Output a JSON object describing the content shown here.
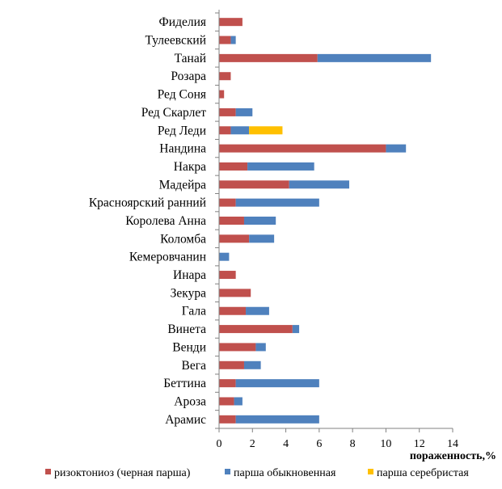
{
  "chart_data": {
    "type": "bar",
    "orientation": "horizontal",
    "stacked": true,
    "categories": [
      "Фиделия",
      "Тулеевский",
      "Танай",
      "Розара",
      "Ред Соня",
      "Ред Скарлет",
      "Ред Леди",
      "Нандина",
      "Накра",
      "Мадейра",
      "Красноярский ранний",
      "Королева Анна",
      "Коломба",
      "Кемеровчанин",
      "Инара",
      "Зекура",
      "Гала",
      "Винета",
      "Венди",
      "Вега",
      "Беттина",
      "Ароза",
      "Арамис"
    ],
    "series": [
      {
        "name": "ризоктониоз (черная парша)",
        "color": "#c0504d",
        "values": [
          1.4,
          0.7,
          5.9,
          0.7,
          0.3,
          1.0,
          0.7,
          10.0,
          1.7,
          4.2,
          1.0,
          1.5,
          1.8,
          0.0,
          1.0,
          1.9,
          1.6,
          4.4,
          2.2,
          1.5,
          1.0,
          0.9,
          1.0
        ]
      },
      {
        "name": "парша обыкновенная",
        "color": "#4f81bd",
        "values": [
          0.0,
          0.3,
          6.8,
          0.0,
          0.0,
          1.0,
          1.1,
          1.2,
          4.0,
          3.6,
          5.0,
          1.9,
          1.5,
          0.6,
          0.0,
          0.0,
          1.4,
          0.4,
          0.6,
          1.0,
          5.0,
          0.5,
          5.0
        ]
      },
      {
        "name": "парша серебристая",
        "color": "#ffc000",
        "values": [
          0,
          0,
          0,
          0,
          0,
          0,
          2.0,
          0,
          0,
          0,
          0,
          0,
          0,
          0,
          0,
          0,
          0,
          0,
          0,
          0,
          0,
          0,
          0
        ]
      }
    ],
    "xlabel": "пораженность,%",
    "xlim": [
      0,
      14
    ],
    "xticks": [
      0,
      2,
      4,
      6,
      8,
      10,
      12,
      14
    ],
    "grid": false,
    "legend_position": "bottom"
  }
}
